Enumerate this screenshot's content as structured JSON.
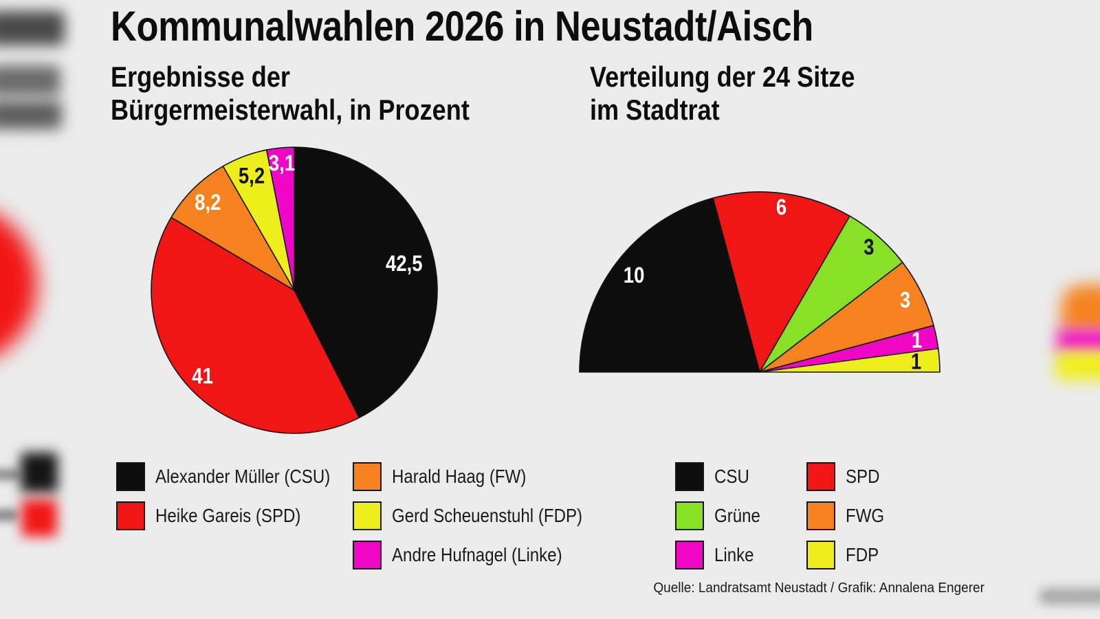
{
  "title": "Kommunalwahlen 2026 in Neustadt/Aisch",
  "source_note": "Quelle: Landratsamt Neustadt / Grafik: Annalena Engerer",
  "background_color": "#ededed",
  "outline_color": "#141414",
  "palette": {
    "black": "#0d0d0d",
    "red": "#f11616",
    "orange": "#f5821f",
    "yellow": "#efee1d",
    "magenta": "#f007c6",
    "green": "#88e027"
  },
  "chart_data": [
    {
      "type": "pie",
      "name": "buergermeisterwahl",
      "title": "Ergebnisse der\nBürgermeisterwahl, in Prozent",
      "unit": "percent",
      "start_angle_deg": 0,
      "end_angle_deg": 360,
      "categories": [
        "Alexander Müller (CSU)",
        "Heike Gareis (SPD)",
        "Harald Haag (FW)",
        "Gerd Scheuenstuhl (FDP)",
        "Andre Hufnagel (Linke)"
      ],
      "values": [
        42.5,
        41,
        8.2,
        5.2,
        3.1
      ],
      "value_labels": [
        "42,5",
        "41",
        "8,2",
        "5,2",
        "3,1"
      ],
      "colors": [
        "#0d0d0d",
        "#f11616",
        "#f5821f",
        "#efee1d",
        "#f007c6"
      ],
      "label_colors": [
        "#ffffff",
        "#ffffff",
        "#ffffff",
        "#111111",
        "#ffffff"
      ],
      "label_radius": [
        0.79,
        0.88,
        0.86,
        0.85,
        0.89
      ]
    },
    {
      "type": "half-pie",
      "name": "stadtrat-sitze",
      "title": "Verteilung der 24 Sitze\nim Stadtrat",
      "unit": "seats",
      "total_seats": 24,
      "start_angle_deg": -90,
      "end_angle_deg": 90,
      "categories": [
        "CSU",
        "SPD",
        "Grüne",
        "FWG",
        "Linke",
        "FDP"
      ],
      "values": [
        10,
        6,
        3,
        3,
        1,
        1
      ],
      "value_labels": [
        "10",
        "6",
        "3",
        "3",
        "1",
        "1"
      ],
      "colors": [
        "#0d0d0d",
        "#f11616",
        "#88e027",
        "#f5821f",
        "#f007c6",
        "#efee1d"
      ],
      "label_colors": [
        "#ffffff",
        "#ffffff",
        "#111111",
        "#ffffff",
        "#ffffff",
        "#111111"
      ],
      "label_radius": [
        0.88,
        0.92,
        0.92,
        0.9,
        0.89,
        0.87
      ]
    }
  ],
  "legends": {
    "left": {
      "columns": [
        [
          {
            "label": "Alexander Müller (CSU)",
            "color": "#0d0d0d"
          },
          {
            "label": "Heike Gareis (SPD)",
            "color": "#f11616"
          }
        ],
        [
          {
            "label": "Harald Haag (FW)",
            "color": "#f5821f"
          },
          {
            "label": "Gerd Scheuenstuhl (FDP)",
            "color": "#efee1d"
          },
          {
            "label": "Andre Hufnagel (Linke)",
            "color": "#f007c6"
          }
        ]
      ]
    },
    "right": {
      "columns": [
        [
          {
            "label": "CSU",
            "color": "#0d0d0d"
          },
          {
            "label": "Grüne",
            "color": "#88e027"
          },
          {
            "label": "Linke",
            "color": "#f007c6"
          }
        ],
        [
          {
            "label": "SPD",
            "color": "#f11616"
          },
          {
            "label": "FWG",
            "color": "#f5821f"
          },
          {
            "label": "FDP",
            "color": "#efee1d"
          }
        ]
      ]
    }
  }
}
